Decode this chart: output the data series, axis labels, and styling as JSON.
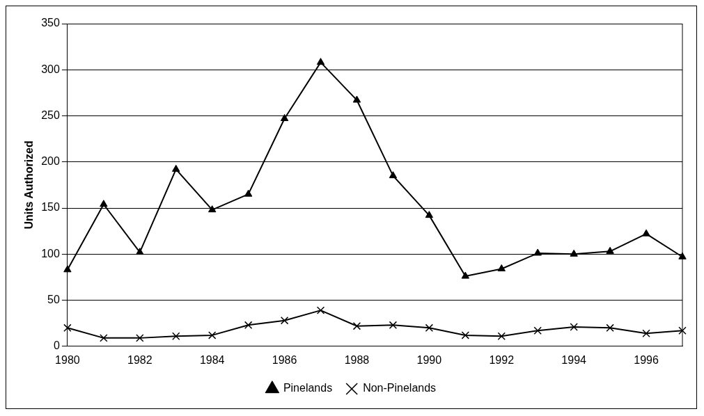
{
  "chart_data": {
    "type": "line",
    "ylabel": "Units Authorized",
    "categories": [
      "1980",
      null,
      "1982",
      null,
      "1984",
      null,
      "1986",
      null,
      "1988",
      null,
      "1990",
      null,
      "1992",
      null,
      "1994",
      null,
      "1996",
      null
    ],
    "series": [
      {
        "name": "Pinelands",
        "color": "#000000",
        "marker": "triangle",
        "values": [
          83,
          154,
          102,
          192,
          148,
          165,
          247,
          308,
          267,
          185,
          142,
          76,
          84,
          101,
          100,
          103,
          122,
          97
        ]
      },
      {
        "name": "Non-Pinelands",
        "color": "#000000",
        "marker": "cross",
        "values": [
          20,
          9,
          9,
          11,
          12,
          23,
          28,
          39,
          22,
          23,
          20,
          12,
          11,
          17,
          21,
          20,
          14,
          17
        ]
      }
    ],
    "ylim": [
      0,
      350
    ],
    "yticks": [
      0,
      50,
      100,
      150,
      200,
      250,
      300,
      350
    ],
    "grid": "y",
    "legend": "bottom",
    "line_style": "solid"
  }
}
